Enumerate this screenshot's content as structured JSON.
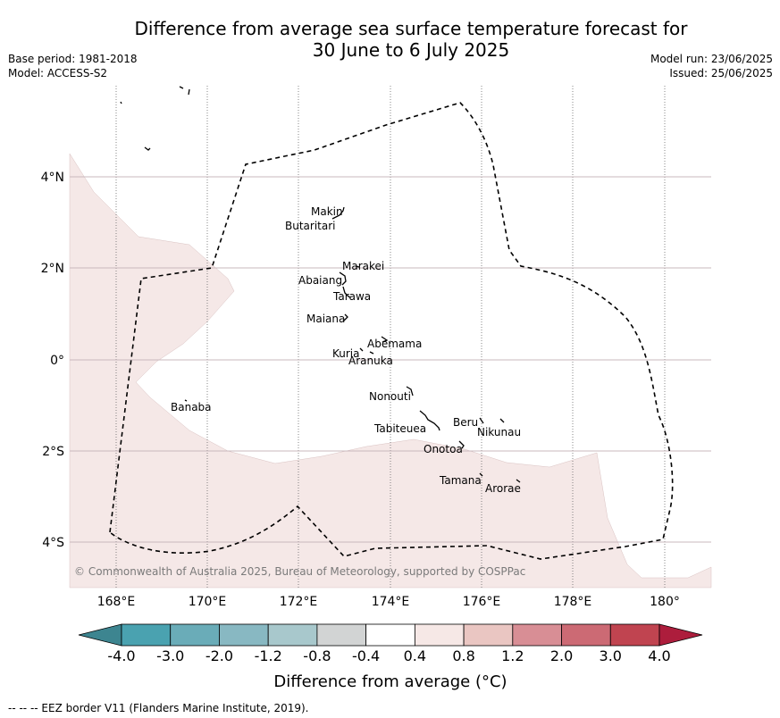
{
  "title_line1": "Difference from average sea surface temperature forecast for",
  "title_line2": "30 June to 6 July 2025",
  "base_period": "Base period: 1981-2018",
  "model": "Model: ACCESS-S2",
  "model_run": "Model run: 23/06/2025",
  "issued": "Issued: 25/06/2025",
  "copyright": "© Commonwealth of Australia 2025, Bureau of Meteorology, supported by COSPPac",
  "footnote": "--  --  -- EEZ border V11 (Flanders Marine Institute, 2019).",
  "colorbar_label": "Difference from average (°C)",
  "lon_ticks": [
    "168°E",
    "170°E",
    "172°E",
    "174°E",
    "176°E",
    "178°E",
    "180°"
  ],
  "lat_ticks": [
    "4°N",
    "2°N",
    "0°",
    "2°S",
    "4°S"
  ],
  "colorbar": {
    "ticks": [
      "-4.0",
      "-3.0",
      "-2.0",
      "-1.2",
      "-0.8",
      "-0.4",
      "0.4",
      "0.8",
      "1.2",
      "2.0",
      "3.0",
      "4.0"
    ],
    "colors": [
      "#4aa2b0",
      "#6aacb8",
      "#88b8c2",
      "#a8c8cc",
      "#d2d4d4",
      "#ffffff",
      "#f6e8e6",
      "#eac6c2",
      "#d88e95",
      "#cc6a74",
      "#c04450"
    ],
    "under_color": "#3d8590",
    "over_color": "#ad1d3c"
  },
  "islands": [
    "Makin",
    "Butaritari",
    "Marakei",
    "Abaiang",
    "Tarawa",
    "Maiana",
    "Abemama",
    "Kuria",
    "Aranuka",
    "Banaba",
    "Nonouti",
    "Tabiteuea",
    "Beru",
    "Nikunau",
    "Onotoa",
    "Tamana",
    "Arorae"
  ],
  "colors": {
    "anomaly_fill": "#f5e8e7",
    "grid_line": "#c9b8be"
  }
}
